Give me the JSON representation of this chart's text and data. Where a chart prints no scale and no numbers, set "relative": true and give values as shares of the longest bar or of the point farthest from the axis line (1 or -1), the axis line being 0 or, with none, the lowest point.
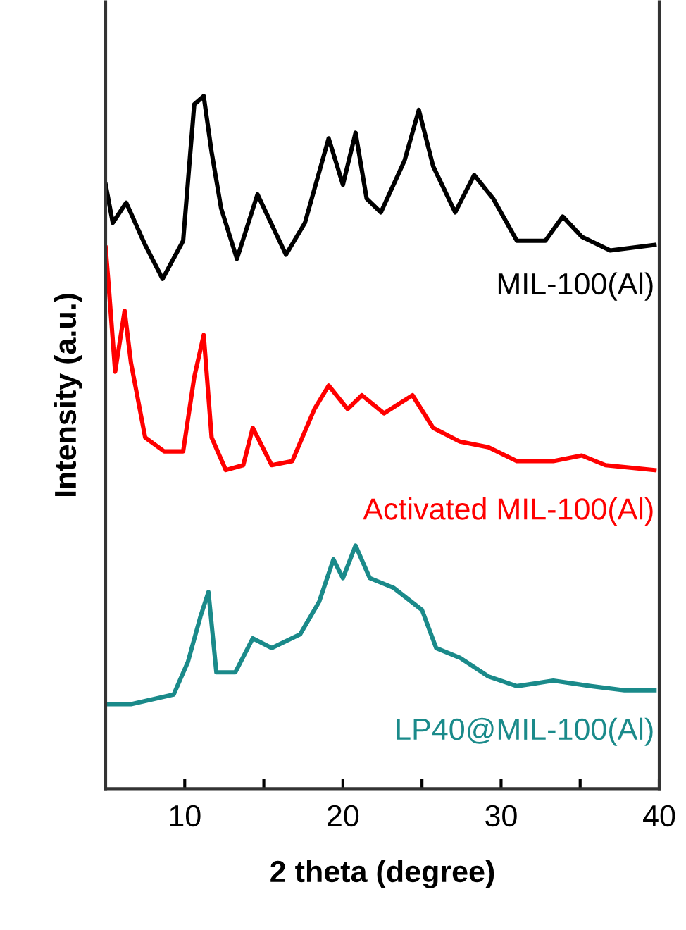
{
  "chart_data": {
    "type": "line",
    "relative": true,
    "xlabel": "2 theta (degree)",
    "ylabel": "Intensity (a.u.)",
    "xlim": [
      5,
      40
    ],
    "xticks": [
      10,
      {
        "value": 15,
        "label": null
      },
      20,
      {
        "value": 25,
        "label": null
      },
      30,
      {
        "value": 35,
        "label": null
      },
      40
    ],
    "tick_labels": "x",
    "grid": false,
    "legend": false,
    "series": [
      {
        "name": "MIL-100(Al)",
        "color": "#000000",
        "x": [
          5.0,
          5.45,
          6.3,
          7.5,
          8.6,
          9.9,
          10.6,
          11.2,
          11.7,
          12.3,
          13.3,
          14.6,
          16.4,
          17.6,
          19.1,
          20.0,
          20.8,
          21.5,
          22.4,
          23.9,
          24.8,
          25.7,
          27.1,
          28.3,
          29.5,
          31.0,
          32.8,
          33.9,
          35.1,
          36.9,
          39.7
        ],
        "values": [
          0.872,
          0.817,
          0.846,
          0.785,
          0.736,
          0.791,
          0.988,
          1.0,
          0.919,
          0.838,
          0.765,
          0.858,
          0.771,
          0.817,
          0.939,
          0.872,
          0.947,
          0.852,
          0.832,
          0.907,
          0.98,
          0.899,
          0.832,
          0.886,
          0.852,
          0.791,
          0.791,
          0.826,
          0.797,
          0.777,
          0.785
        ]
      },
      {
        "name": "Activated MIL-100(Al)",
        "color": "#ff0000",
        "x": [
          5.0,
          5.2,
          5.6,
          6.2,
          6.6,
          7.5,
          8.7,
          9.9,
          10.6,
          11.2,
          11.7,
          12.6,
          13.7,
          14.3,
          15.5,
          16.8,
          18.2,
          19.1,
          20.3,
          21.2,
          22.6,
          24.4,
          25.7,
          27.4,
          29.2,
          31.0,
          33.3,
          35.1,
          36.6,
          39.7
        ],
        "values": [
          0.781,
          0.724,
          0.602,
          0.69,
          0.615,
          0.507,
          0.487,
          0.487,
          0.594,
          0.655,
          0.507,
          0.46,
          0.467,
          0.521,
          0.467,
          0.473,
          0.548,
          0.582,
          0.548,
          0.568,
          0.542,
          0.568,
          0.521,
          0.501,
          0.493,
          0.473,
          0.473,
          0.481,
          0.467,
          0.46
        ]
      },
      {
        "name": "LP40@MIL-100(Al)",
        "color": "#1a8a8a",
        "x": [
          5.0,
          6.6,
          9.3,
          10.2,
          11.0,
          11.5,
          12.0,
          13.2,
          14.3,
          15.5,
          17.3,
          18.5,
          19.4,
          20.0,
          20.8,
          21.7,
          23.2,
          25.0,
          25.9,
          27.4,
          29.2,
          31.0,
          33.3,
          35.7,
          37.8,
          39.7
        ],
        "values": [
          0.122,
          0.122,
          0.136,
          0.183,
          0.249,
          0.284,
          0.168,
          0.168,
          0.217,
          0.203,
          0.223,
          0.27,
          0.331,
          0.304,
          0.351,
          0.304,
          0.29,
          0.258,
          0.203,
          0.189,
          0.162,
          0.148,
          0.156,
          0.148,
          0.142,
          0.142
        ]
      }
    ]
  }
}
